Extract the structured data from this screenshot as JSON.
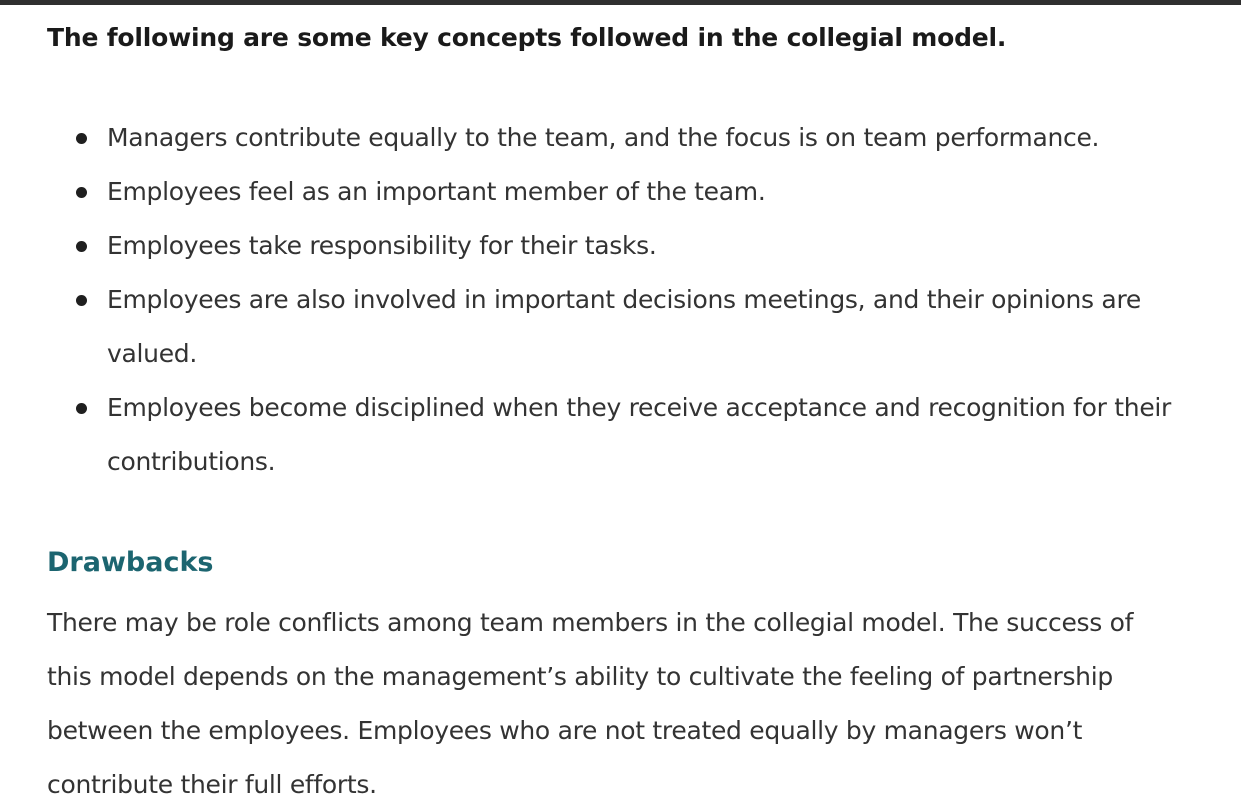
{
  "intro": "The following are some key concepts followed in the collegial model.",
  "concepts": [
    "Managers contribute equally to the team, and the focus is on team performance.",
    "Employees feel as an important member of the team.",
    "Employees take responsibility for their tasks.",
    "Employees are also involved in important decisions meetings, and their opinions are valued.",
    "Employees become disciplined when they receive acceptance and recognition for their contributions."
  ],
  "drawbacks": {
    "heading": "Drawbacks",
    "body": "There may be role conflicts among team members in the collegial model. The success of this model depends on the management’s ability to cultivate the feeling of partnership between the employees. Employees who are not treated equally by managers won’t contribute their full efforts."
  },
  "colors": {
    "heading_accent": "#1c6570",
    "text": "#333333",
    "top_bar": "#2f2f2f"
  }
}
